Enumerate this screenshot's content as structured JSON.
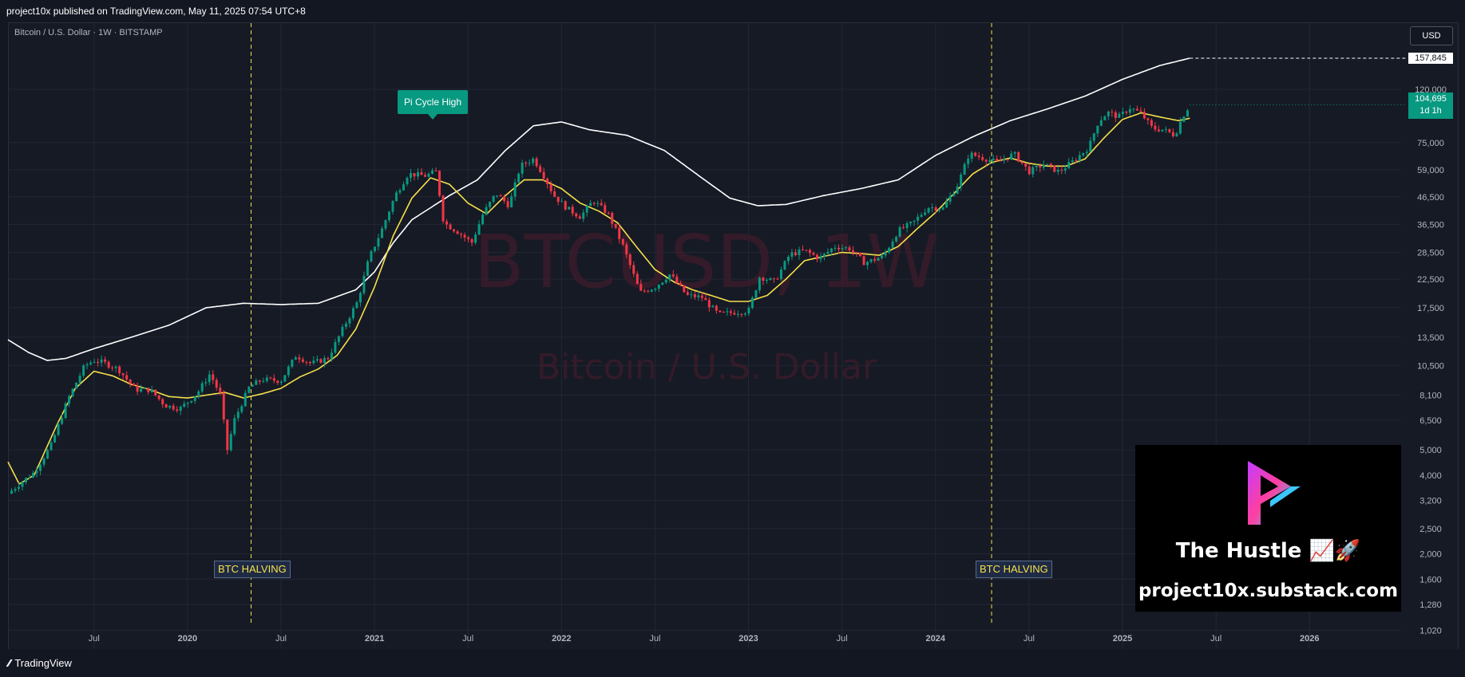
{
  "header": {
    "publisher": "project10x published on TradingView.com, May 11, 2025 07:54 UTC+8"
  },
  "footer": {
    "brand": "TradingView",
    "brand_icon": "tradingview-logo-icon"
  },
  "chart_data": {
    "type": "candlestick",
    "symbol_line": "Bitcoin / U.S. Dollar · 1W · BITSTAMP",
    "watermark_symbol": "BTCUSD, 1W",
    "watermark_name": "Bitcoin / U.S. Dollar",
    "currency": "USD",
    "y_scale": "log",
    "ylim": [
      870,
      215000
    ],
    "y_ticks": [
      "157,845",
      "120,000",
      "75,000",
      "59,000",
      "46,500",
      "36,500",
      "28,500",
      "22,500",
      "17,500",
      "13,500",
      "10,500",
      "8,100",
      "6,500",
      "5,000",
      "4,000",
      "3,200",
      "2,500",
      "2,000",
      "1,600",
      "1,280",
      "1,020"
    ],
    "y_tick_values": [
      120000,
      75000,
      59000,
      46500,
      36500,
      28500,
      22500,
      17500,
      13500,
      10500,
      8100,
      6500,
      5000,
      4000,
      3200,
      2500,
      2000,
      1600,
      1280,
      1020
    ],
    "x_ticks": [
      "Jul",
      "2020",
      "Jul",
      "2021",
      "Jul",
      "2022",
      "Jul",
      "2023",
      "Jul",
      "2024",
      "Jul",
      "2025",
      "Jul",
      "2026"
    ],
    "x_tick_years": [
      2019.5,
      2020.0,
      2020.5,
      2021.0,
      2021.5,
      2022.0,
      2022.5,
      2023.0,
      2023.5,
      2024.0,
      2024.5,
      2025.0,
      2025.5,
      2026.0
    ],
    "xlim_years": [
      2019.04,
      2026.49
    ],
    "last_price": "104,695",
    "countdown": "1d 1h",
    "last_value": 104695,
    "pi_line_last": 157845,
    "pi_line_last_label": "157,845",
    "grid": true,
    "colors": {
      "up": "#089981",
      "down": "#f23645",
      "ma_yellow": "#f5e04a",
      "ma_white": "#ffffff",
      "halving": "#f5e04a",
      "bg": "#161a25"
    },
    "annotations": [
      {
        "text": "Pi Cycle High",
        "x_year": 2021.27,
        "style": "teal-label"
      },
      {
        "text": "BTC HALVING",
        "x_year": 2020.34,
        "style": "halving"
      },
      {
        "text": "BTC HALVING",
        "x_year": 2024.3,
        "style": "halving"
      }
    ],
    "halvings_years": [
      2020.34,
      2024.3
    ],
    "price_path": [
      [
        2019.04,
        3400
      ],
      [
        2019.1,
        3700
      ],
      [
        2019.18,
        4100
      ],
      [
        2019.27,
        5200
      ],
      [
        2019.36,
        7800
      ],
      [
        2019.45,
        10500
      ],
      [
        2019.5,
        11000
      ],
      [
        2019.55,
        10800
      ],
      [
        2019.63,
        10200
      ],
      [
        2019.72,
        8500
      ],
      [
        2019.8,
        8500
      ],
      [
        2019.88,
        7400
      ],
      [
        2019.96,
        7200
      ],
      [
        2020.05,
        8200
      ],
      [
        2020.12,
        9800
      ],
      [
        2020.18,
        8000
      ],
      [
        2020.21,
        4900
      ],
      [
        2020.25,
        6500
      ],
      [
        2020.33,
        8700
      ],
      [
        2020.4,
        9300
      ],
      [
        2020.5,
        9200
      ],
      [
        2020.58,
        11500
      ],
      [
        2020.66,
        10700
      ],
      [
        2020.75,
        11200
      ],
      [
        2020.84,
        15000
      ],
      [
        2020.91,
        18500
      ],
      [
        2020.97,
        27000
      ],
      [
        2021.04,
        35000
      ],
      [
        2021.11,
        47000
      ],
      [
        2021.18,
        57000
      ],
      [
        2021.27,
        56000
      ],
      [
        2021.33,
        58000
      ],
      [
        2021.37,
        37000
      ],
      [
        2021.45,
        34000
      ],
      [
        2021.52,
        31000
      ],
      [
        2021.58,
        40000
      ],
      [
        2021.65,
        48000
      ],
      [
        2021.72,
        43000
      ],
      [
        2021.78,
        61000
      ],
      [
        2021.85,
        65000
      ],
      [
        2021.9,
        57000
      ],
      [
        2021.96,
        47000
      ],
      [
        2022.03,
        42000
      ],
      [
        2022.1,
        39000
      ],
      [
        2022.17,
        45000
      ],
      [
        2022.25,
        40000
      ],
      [
        2022.33,
        30000
      ],
      [
        2022.42,
        20000
      ],
      [
        2022.5,
        21000
      ],
      [
        2022.58,
        23500
      ],
      [
        2022.67,
        19500
      ],
      [
        2022.75,
        19200
      ],
      [
        2022.84,
        16500
      ],
      [
        2022.92,
        16800
      ],
      [
        2023.0,
        17000
      ],
      [
        2023.06,
        23000
      ],
      [
        2023.14,
        22000
      ],
      [
        2023.22,
        28000
      ],
      [
        2023.3,
        29000
      ],
      [
        2023.38,
        27000
      ],
      [
        2023.46,
        30000
      ],
      [
        2023.54,
        29500
      ],
      [
        2023.62,
        26000
      ],
      [
        2023.72,
        27500
      ],
      [
        2023.8,
        34500
      ],
      [
        2023.88,
        37000
      ],
      [
        2023.96,
        42500
      ],
      [
        2024.04,
        42000
      ],
      [
        2024.12,
        52000
      ],
      [
        2024.18,
        68000
      ],
      [
        2024.24,
        66000
      ],
      [
        2024.33,
        63000
      ],
      [
        2024.42,
        68000
      ],
      [
        2024.5,
        58000
      ],
      [
        2024.58,
        62000
      ],
      [
        2024.66,
        58000
      ],
      [
        2024.74,
        64000
      ],
      [
        2024.82,
        72000
      ],
      [
        2024.87,
        90000
      ],
      [
        2024.92,
        98000
      ],
      [
        2024.98,
        94000
      ],
      [
        2025.04,
        102000
      ],
      [
        2025.1,
        97000
      ],
      [
        2025.16,
        85000
      ],
      [
        2025.22,
        84000
      ],
      [
        2025.28,
        80000
      ],
      [
        2025.32,
        94000
      ],
      [
        2025.36,
        104695
      ]
    ],
    "ma_yellow_path": [
      [
        2019.04,
        4500
      ],
      [
        2019.1,
        3700
      ],
      [
        2019.18,
        4000
      ],
      [
        2019.3,
        6200
      ],
      [
        2019.4,
        8600
      ],
      [
        2019.5,
        10000
      ],
      [
        2019.6,
        9600
      ],
      [
        2019.7,
        8900
      ],
      [
        2019.8,
        8500
      ],
      [
        2019.9,
        8000
      ],
      [
        2020.0,
        7900
      ],
      [
        2020.1,
        8100
      ],
      [
        2020.2,
        8300
      ],
      [
        2020.3,
        7900
      ],
      [
        2020.4,
        8200
      ],
      [
        2020.5,
        8600
      ],
      [
        2020.6,
        9500
      ],
      [
        2020.7,
        10200
      ],
      [
        2020.8,
        11500
      ],
      [
        2020.9,
        14500
      ],
      [
        2021.0,
        21000
      ],
      [
        2021.1,
        33000
      ],
      [
        2021.2,
        46000
      ],
      [
        2021.3,
        55000
      ],
      [
        2021.4,
        52000
      ],
      [
        2021.5,
        44000
      ],
      [
        2021.6,
        40000
      ],
      [
        2021.7,
        47000
      ],
      [
        2021.8,
        54000
      ],
      [
        2021.9,
        54000
      ],
      [
        2022.0,
        50000
      ],
      [
        2022.1,
        44000
      ],
      [
        2022.2,
        41000
      ],
      [
        2022.3,
        37000
      ],
      [
        2022.4,
        30000
      ],
      [
        2022.5,
        24500
      ],
      [
        2022.6,
        22000
      ],
      [
        2022.7,
        20500
      ],
      [
        2022.8,
        19500
      ],
      [
        2022.9,
        18500
      ],
      [
        2023.0,
        18500
      ],
      [
        2023.1,
        19500
      ],
      [
        2023.2,
        22500
      ],
      [
        2023.3,
        26500
      ],
      [
        2023.4,
        27500
      ],
      [
        2023.5,
        28500
      ],
      [
        2023.6,
        28200
      ],
      [
        2023.7,
        27800
      ],
      [
        2023.8,
        30000
      ],
      [
        2023.9,
        35000
      ],
      [
        2024.0,
        40500
      ],
      [
        2024.1,
        48000
      ],
      [
        2024.2,
        57000
      ],
      [
        2024.3,
        63000
      ],
      [
        2024.4,
        65500
      ],
      [
        2024.5,
        62500
      ],
      [
        2024.6,
        61000
      ],
      [
        2024.7,
        61000
      ],
      [
        2024.8,
        65000
      ],
      [
        2024.9,
        78000
      ],
      [
        2025.0,
        92000
      ],
      [
        2025.1,
        97500
      ],
      [
        2025.2,
        94000
      ],
      [
        2025.3,
        91000
      ],
      [
        2025.36,
        93000
      ]
    ],
    "ma_white_path": [
      [
        2019.04,
        13200
      ],
      [
        2019.15,
        11800
      ],
      [
        2019.25,
        11000
      ],
      [
        2019.35,
        11200
      ],
      [
        2019.5,
        12200
      ],
      [
        2019.7,
        13500
      ],
      [
        2019.9,
        15000
      ],
      [
        2020.1,
        17500
      ],
      [
        2020.3,
        18200
      ],
      [
        2020.5,
        18000
      ],
      [
        2020.7,
        18200
      ],
      [
        2020.9,
        20500
      ],
      [
        2021.0,
        24000
      ],
      [
        2021.1,
        31000
      ],
      [
        2021.2,
        38000
      ],
      [
        2021.4,
        47000
      ],
      [
        2021.55,
        54000
      ],
      [
        2021.7,
        70000
      ],
      [
        2021.85,
        87000
      ],
      [
        2022.0,
        90000
      ],
      [
        2022.15,
        84000
      ],
      [
        2022.35,
        80000
      ],
      [
        2022.55,
        70000
      ],
      [
        2022.75,
        55000
      ],
      [
        2022.9,
        46000
      ],
      [
        2023.05,
        43000
      ],
      [
        2023.2,
        43500
      ],
      [
        2023.4,
        47000
      ],
      [
        2023.6,
        50000
      ],
      [
        2023.8,
        54000
      ],
      [
        2024.0,
        67000
      ],
      [
        2024.2,
        79000
      ],
      [
        2024.4,
        91000
      ],
      [
        2024.6,
        101000
      ],
      [
        2024.8,
        113000
      ],
      [
        2025.0,
        131000
      ],
      [
        2025.2,
        148000
      ],
      [
        2025.36,
        157845
      ]
    ]
  },
  "promo": {
    "title": "The Hustle 📈🚀",
    "url": "project10x.substack.com",
    "logo_icon": "play-p-logo-icon"
  }
}
